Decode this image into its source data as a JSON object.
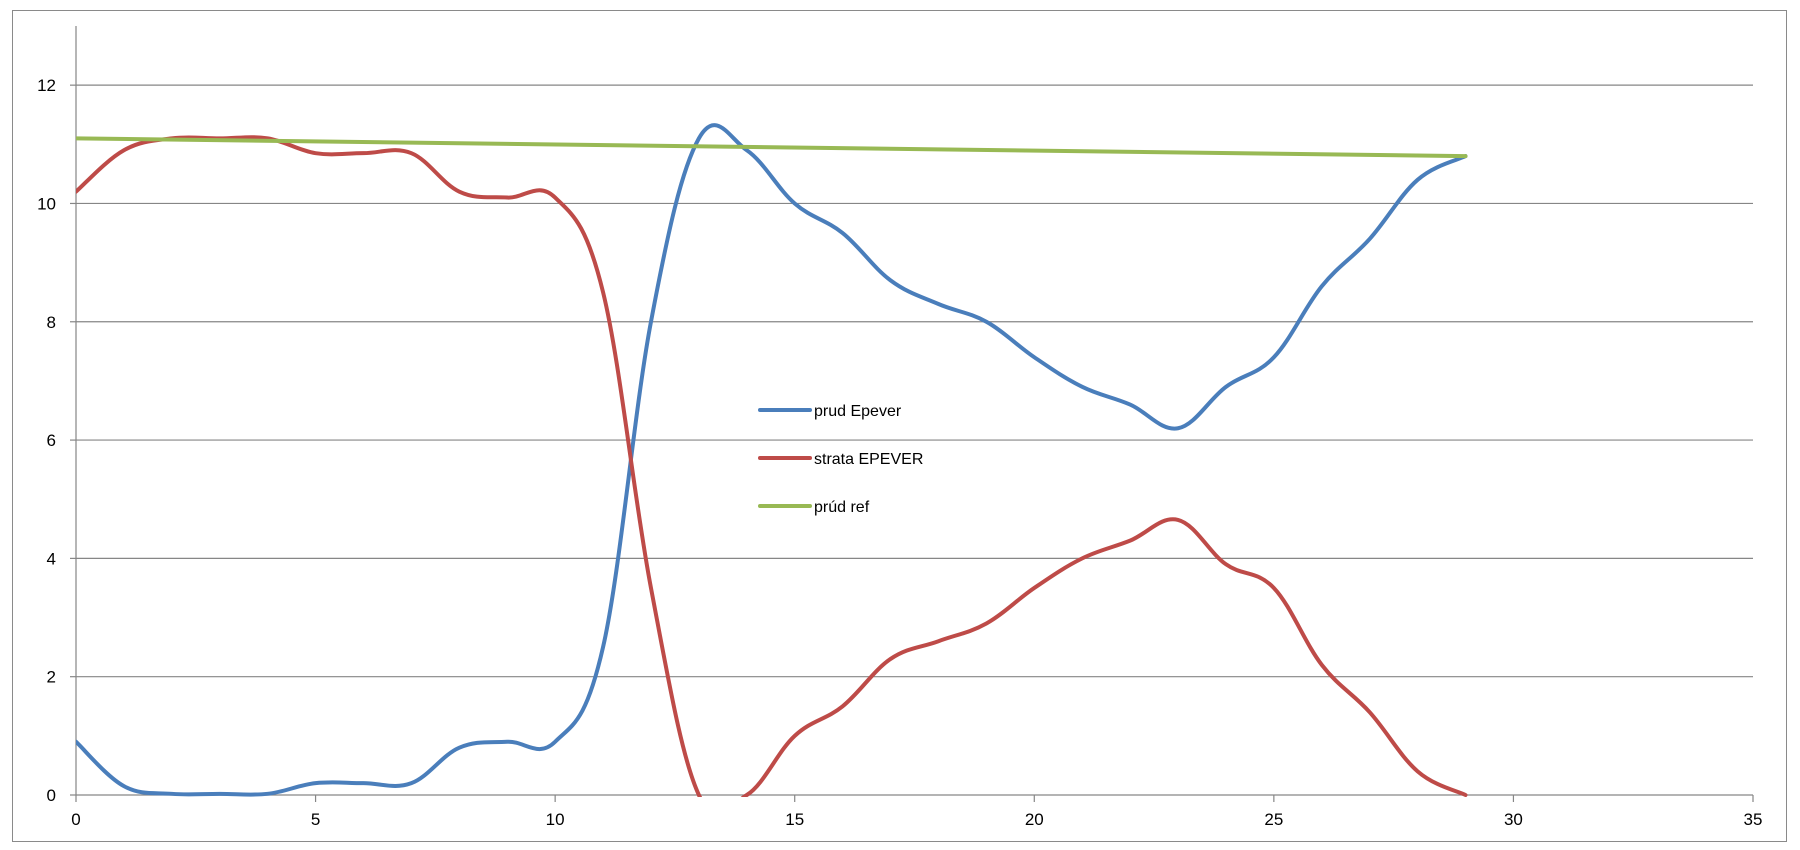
{
  "chart_data": {
    "type": "line",
    "title": "",
    "xlabel": "",
    "ylabel": "",
    "xlim": [
      0,
      35
    ],
    "ylim": [
      0,
      13
    ],
    "xticks": [
      0,
      5,
      10,
      15,
      20,
      25,
      30,
      35
    ],
    "yticks": [
      0,
      2,
      4,
      6,
      8,
      10,
      12
    ],
    "grid": "horizontal",
    "legend_position": "center",
    "series": [
      {
        "name": "prud Epever",
        "color": "#4a7ebb",
        "points": [
          [
            0,
            0.9
          ],
          [
            1,
            0.15
          ],
          [
            2,
            0.02
          ],
          [
            3,
            0.02
          ],
          [
            4,
            0.02
          ],
          [
            5,
            0.2
          ],
          [
            6,
            0.2
          ],
          [
            7,
            0.2
          ],
          [
            8,
            0.8
          ],
          [
            9,
            0.9
          ],
          [
            10,
            0.9
          ],
          [
            11,
            2.5
          ],
          [
            12,
            8.0
          ],
          [
            13,
            11.1
          ],
          [
            14,
            10.9
          ],
          [
            15,
            10.0
          ],
          [
            16,
            9.5
          ],
          [
            17,
            8.7
          ],
          [
            18,
            8.3
          ],
          [
            19,
            8.0
          ],
          [
            20,
            7.4
          ],
          [
            21,
            6.9
          ],
          [
            22,
            6.6
          ],
          [
            23,
            6.2
          ],
          [
            24,
            6.9
          ],
          [
            25,
            7.4
          ],
          [
            26,
            8.6
          ],
          [
            27,
            9.4
          ],
          [
            28,
            10.4
          ],
          [
            29,
            10.8
          ]
        ]
      },
      {
        "name": "strata EPEVER",
        "color": "#be4b48",
        "points": [
          [
            0,
            10.2
          ],
          [
            1,
            10.9
          ],
          [
            2,
            11.1
          ],
          [
            3,
            11.1
          ],
          [
            4,
            11.1
          ],
          [
            5,
            10.85
          ],
          [
            6,
            10.85
          ],
          [
            7,
            10.85
          ],
          [
            8,
            10.2
          ],
          [
            9,
            10.1
          ],
          [
            10,
            10.1
          ],
          [
            11,
            8.5
          ],
          [
            12,
            3.5
          ],
          [
            13,
            0.0
          ],
          [
            14,
            0.0
          ],
          [
            15,
            1.0
          ],
          [
            16,
            1.5
          ],
          [
            17,
            2.3
          ],
          [
            18,
            2.6
          ],
          [
            19,
            2.9
          ],
          [
            20,
            3.5
          ],
          [
            21,
            4.0
          ],
          [
            22,
            4.3
          ],
          [
            23,
            4.65
          ],
          [
            24,
            3.9
          ],
          [
            25,
            3.5
          ],
          [
            26,
            2.2
          ],
          [
            27,
            1.4
          ],
          [
            28,
            0.4
          ],
          [
            29,
            0.0
          ]
        ]
      },
      {
        "name": "prúd ref",
        "color": "#98b954",
        "points": [
          [
            0,
            11.1
          ],
          [
            29,
            10.8
          ]
        ]
      }
    ]
  }
}
